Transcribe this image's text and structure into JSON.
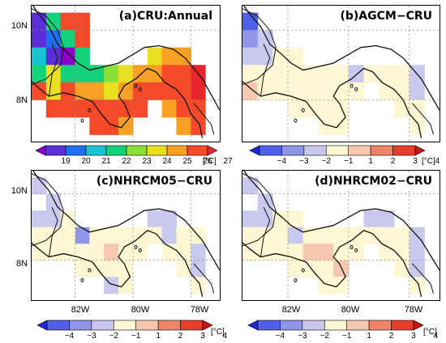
{
  "panels": [
    {
      "id": "a",
      "title": "(a)CRU:Annual",
      "kind": "abs"
    },
    {
      "id": "b",
      "title": "(b)AGCM−CRU",
      "kind": "diff"
    },
    {
      "id": "c",
      "title": "(c)NHRCM05−CRU",
      "kind": "diff"
    },
    {
      "id": "d",
      "title": "(d)NHRCM02−CRU",
      "kind": "diff"
    }
  ],
  "axes": {
    "lat_labels": [
      "10N",
      "8N"
    ],
    "lon_labels": [
      "82W",
      "80W",
      "78W"
    ]
  },
  "colorbar_abs": {
    "ticks": [
      "19",
      "20",
      "21",
      "22",
      "23",
      "24",
      "25",
      "26",
      "27"
    ],
    "unit": "[°C]",
    "colors": [
      "#8b00c8",
      "#5a2fd8",
      "#1f6ef0",
      "#18c4d0",
      "#14d27a",
      "#8ce03a",
      "#e8e020",
      "#f7a024",
      "#f44a2a",
      "#e8252a"
    ]
  },
  "colorbar_diff": {
    "ticks": [
      "−4",
      "−3",
      "−2",
      "−1",
      "1",
      "2",
      "3",
      "4"
    ],
    "unit": "[°C]",
    "colors": [
      "#1d27d8",
      "#4f5fe8",
      "#8f95e8",
      "#c9c9ee",
      "#fdf7d4",
      "#f6c8b0",
      "#f08466",
      "#e83c2c",
      "#c81414"
    ]
  },
  "map_data": {
    "extent": {
      "lon": [
        -83.5,
        -77.0
      ],
      "lat": [
        6.8,
        10.7
      ]
    },
    "grid_step": 0.5,
    "cells_a": [
      [
        -83.25,
        10.25,
        1
      ],
      [
        -82.75,
        10.25,
        4
      ],
      [
        -82.25,
        10.25,
        8
      ],
      [
        -81.75,
        10.25,
        8
      ],
      [
        -83.25,
        9.75,
        1
      ],
      [
        -82.75,
        9.75,
        2
      ],
      [
        -82.25,
        9.75,
        4
      ],
      [
        -81.75,
        9.75,
        8
      ],
      [
        -83.25,
        9.25,
        3
      ],
      [
        -82.75,
        9.25,
        1
      ],
      [
        -82.25,
        9.25,
        0
      ],
      [
        -81.75,
        9.25,
        4
      ],
      [
        -79.25,
        9.25,
        6
      ],
      [
        -78.75,
        9.25,
        7
      ],
      [
        -78.25,
        9.25,
        7
      ],
      [
        -83.25,
        8.75,
        4
      ],
      [
        -82.75,
        8.75,
        6
      ],
      [
        -82.25,
        8.75,
        4
      ],
      [
        -81.75,
        8.75,
        4
      ],
      [
        -81.25,
        8.75,
        4
      ],
      [
        -80.75,
        8.75,
        5
      ],
      [
        -80.25,
        8.75,
        6
      ],
      [
        -79.75,
        8.75,
        7
      ],
      [
        -79.25,
        8.75,
        7
      ],
      [
        -78.75,
        8.75,
        8
      ],
      [
        -78.25,
        8.75,
        8
      ],
      [
        -77.75,
        8.75,
        9
      ],
      [
        -83.25,
        8.25,
        8
      ],
      [
        -82.75,
        8.25,
        6
      ],
      [
        -82.25,
        8.25,
        8
      ],
      [
        -81.75,
        8.25,
        7
      ],
      [
        -81.25,
        8.25,
        7
      ],
      [
        -80.75,
        8.25,
        6
      ],
      [
        -80.25,
        8.25,
        7
      ],
      [
        -79.75,
        8.25,
        8
      ],
      [
        -79.25,
        8.25,
        8
      ],
      [
        -78.75,
        8.25,
        8
      ],
      [
        -78.25,
        8.25,
        8
      ],
      [
        -77.75,
        8.25,
        9
      ],
      [
        -82.75,
        7.75,
        8
      ],
      [
        -82.25,
        7.75,
        8
      ],
      [
        -81.75,
        7.75,
        8
      ],
      [
        -81.25,
        7.75,
        8
      ],
      [
        -80.75,
        7.75,
        8
      ],
      [
        -80.25,
        7.75,
        8
      ],
      [
        -79.75,
        7.75,
        8
      ],
      [
        -78.75,
        7.75,
        7
      ],
      [
        -78.25,
        7.75,
        8
      ],
      [
        -77.75,
        7.75,
        8
      ],
      [
        -81.25,
        7.25,
        8
      ],
      [
        -80.75,
        7.25,
        8
      ],
      [
        -80.25,
        7.25,
        7
      ],
      [
        -78.25,
        7.25,
        7
      ],
      [
        -77.75,
        7.25,
        8
      ]
    ],
    "cells_b": [
      [
        -83.25,
        10.25,
        1
      ],
      [
        -83.25,
        9.75,
        2
      ],
      [
        -82.75,
        9.75,
        3
      ],
      [
        -83.25,
        9.25,
        3
      ],
      [
        -82.75,
        9.25,
        3
      ],
      [
        -82.25,
        9.25,
        4
      ],
      [
        -81.75,
        9.25,
        4
      ],
      [
        -83.25,
        8.75,
        4
      ],
      [
        -82.75,
        8.75,
        4
      ],
      [
        -82.25,
        8.75,
        4
      ],
      [
        -81.75,
        8.75,
        4
      ],
      [
        -81.25,
        8.75,
        4
      ],
      [
        -80.75,
        8.75,
        4
      ],
      [
        -80.25,
        8.75,
        4
      ],
      [
        -79.75,
        8.75,
        3
      ],
      [
        -79.25,
        8.75,
        4
      ],
      [
        -78.75,
        8.75,
        4
      ],
      [
        -78.25,
        8.75,
        4
      ],
      [
        -77.75,
        8.75,
        3
      ],
      [
        -83.25,
        8.25,
        5
      ],
      [
        -82.75,
        8.25,
        4
      ],
      [
        -82.25,
        8.25,
        4
      ],
      [
        -81.75,
        8.25,
        4
      ],
      [
        -81.25,
        8.25,
        4
      ],
      [
        -80.75,
        8.25,
        4
      ],
      [
        -80.25,
        8.25,
        4
      ],
      [
        -79.75,
        8.25,
        4
      ],
      [
        -78.75,
        8.25,
        4
      ],
      [
        -78.25,
        8.25,
        4
      ],
      [
        -77.75,
        8.25,
        3
      ],
      [
        -81.75,
        7.75,
        4
      ],
      [
        -81.25,
        7.75,
        4
      ],
      [
        -80.75,
        7.75,
        4
      ],
      [
        -80.25,
        7.75,
        4
      ],
      [
        -78.25,
        7.75,
        4
      ],
      [
        -77.75,
        7.75,
        4
      ],
      [
        -80.75,
        7.25,
        4
      ],
      [
        -80.25,
        7.25,
        4
      ],
      [
        -77.75,
        7.25,
        4
      ]
    ],
    "cells_c": [
      [
        -83.25,
        10.25,
        3
      ],
      [
        -82.75,
        9.75,
        3
      ],
      [
        -83.25,
        9.25,
        3
      ],
      [
        -82.75,
        9.25,
        3
      ],
      [
        -82.25,
        9.25,
        4
      ],
      [
        -81.75,
        8.75,
        2
      ],
      [
        -79.25,
        9.25,
        3
      ],
      [
        -78.75,
        9.25,
        3
      ],
      [
        -83.25,
        8.75,
        4
      ],
      [
        -82.75,
        8.75,
        4
      ],
      [
        -82.25,
        8.75,
        4
      ],
      [
        -81.25,
        8.75,
        4
      ],
      [
        -80.75,
        8.75,
        4
      ],
      [
        -80.25,
        8.75,
        4
      ],
      [
        -79.75,
        8.75,
        4
      ],
      [
        -79.25,
        8.75,
        4
      ],
      [
        -78.75,
        8.75,
        3
      ],
      [
        -78.25,
        8.75,
        4
      ],
      [
        -77.75,
        8.75,
        4
      ],
      [
        -83.25,
        8.25,
        4
      ],
      [
        -82.75,
        8.25,
        4
      ],
      [
        -82.25,
        8.25,
        4
      ],
      [
        -81.75,
        8.25,
        4
      ],
      [
        -81.25,
        8.25,
        4
      ],
      [
        -80.75,
        8.25,
        5
      ],
      [
        -80.25,
        8.25,
        4
      ],
      [
        -79.75,
        8.25,
        4
      ],
      [
        -78.75,
        8.25,
        4
      ],
      [
        -78.25,
        8.25,
        4
      ],
      [
        -77.75,
        8.25,
        3
      ],
      [
        -81.75,
        7.75,
        4
      ],
      [
        -81.25,
        7.75,
        4
      ],
      [
        -80.75,
        7.75,
        4
      ],
      [
        -80.25,
        7.75,
        4
      ],
      [
        -78.25,
        7.75,
        4
      ],
      [
        -77.75,
        7.75,
        3
      ],
      [
        -80.75,
        7.25,
        3
      ],
      [
        -80.25,
        7.25,
        4
      ],
      [
        -77.75,
        7.25,
        4
      ]
    ],
    "cells_d": [
      [
        -83.25,
        10.25,
        3
      ],
      [
        -82.75,
        9.75,
        3
      ],
      [
        -83.25,
        9.25,
        3
      ],
      [
        -82.75,
        9.25,
        3
      ],
      [
        -82.25,
        9.25,
        4
      ],
      [
        -81.75,
        9.25,
        4
      ],
      [
        -79.25,
        9.25,
        3
      ],
      [
        -78.75,
        9.25,
        3
      ],
      [
        -83.25,
        8.75,
        4
      ],
      [
        -82.75,
        8.75,
        4
      ],
      [
        -82.25,
        8.75,
        4
      ],
      [
        -81.75,
        8.75,
        3
      ],
      [
        -81.25,
        8.75,
        4
      ],
      [
        -80.75,
        8.75,
        4
      ],
      [
        -80.25,
        8.75,
        4
      ],
      [
        -79.75,
        8.75,
        4
      ],
      [
        -79.25,
        8.75,
        4
      ],
      [
        -78.75,
        8.75,
        4
      ],
      [
        -78.25,
        8.75,
        4
      ],
      [
        -77.75,
        8.75,
        3
      ],
      [
        -83.25,
        8.25,
        4
      ],
      [
        -82.75,
        8.25,
        4
      ],
      [
        -82.25,
        8.25,
        4
      ],
      [
        -81.75,
        8.25,
        4
      ],
      [
        -81.25,
        8.25,
        5
      ],
      [
        -80.75,
        8.25,
        5
      ],
      [
        -80.25,
        8.25,
        4
      ],
      [
        -79.75,
        8.25,
        4
      ],
      [
        -78.75,
        8.25,
        4
      ],
      [
        -78.25,
        8.25,
        4
      ],
      [
        -77.75,
        8.25,
        3
      ],
      [
        -81.75,
        7.75,
        4
      ],
      [
        -81.25,
        7.75,
        4
      ],
      [
        -80.75,
        7.75,
        4
      ],
      [
        -80.25,
        7.75,
        5
      ],
      [
        -78.25,
        7.75,
        4
      ],
      [
        -77.75,
        7.75,
        3
      ],
      [
        -80.75,
        7.25,
        4
      ],
      [
        -80.25,
        7.25,
        4
      ],
      [
        -77.75,
        7.25,
        4
      ]
    ]
  }
}
